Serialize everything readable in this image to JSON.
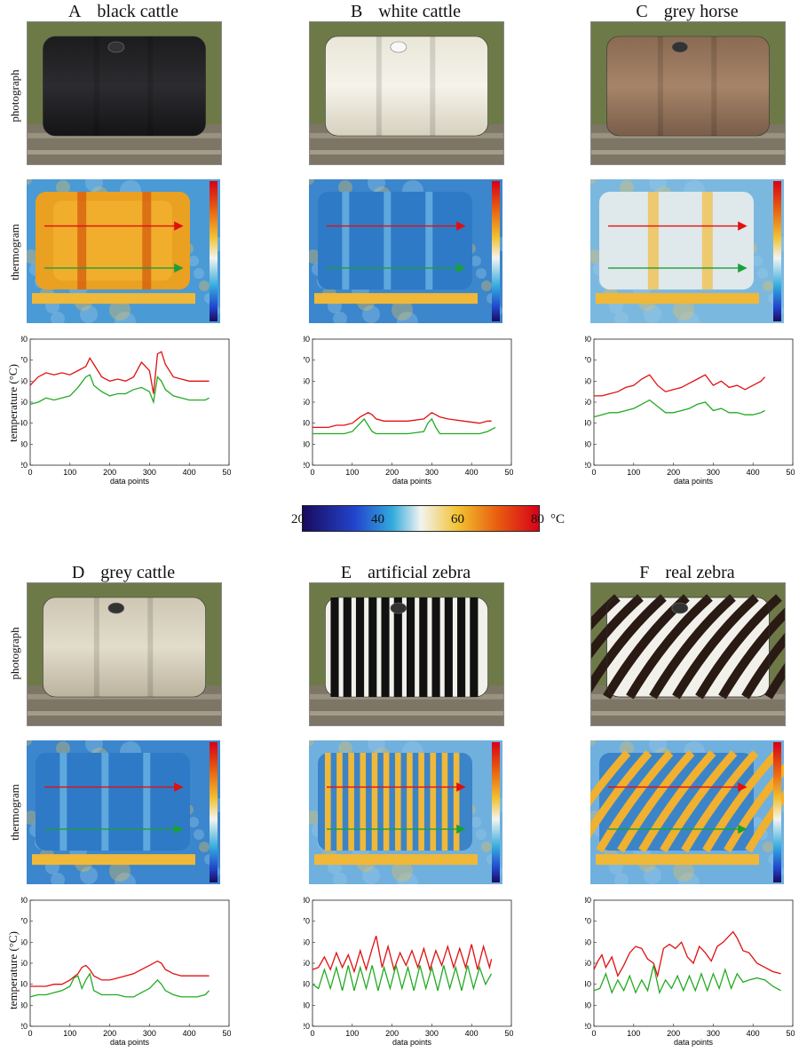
{
  "row_labels": {
    "photograph": "photograph",
    "thermogram": "thermogram",
    "temperature_html": "temperature (°C)"
  },
  "axis": {
    "xlabel": "data points",
    "yticks": [
      "20",
      "30",
      "40",
      "50",
      "60",
      "70",
      "80"
    ],
    "xticks": [
      "0",
      "100",
      "200",
      "300",
      "400",
      "500"
    ]
  },
  "colorbar": {
    "labels": [
      "20",
      "40",
      "60",
      "80"
    ],
    "unit": "°C",
    "colors": [
      "#1a0a5e",
      "#2244cc",
      "#33aadd",
      "#f2f4f0",
      "#f2c030",
      "#e86010",
      "#d80018"
    ]
  },
  "panels": [
    {
      "letter": "A",
      "name": "black cattle",
      "photo_style": "black-cattle",
      "thermo_style": "hot"
    },
    {
      "letter": "B",
      "name": "white cattle",
      "photo_style": "white-cattle",
      "thermo_style": "cold"
    },
    {
      "letter": "C",
      "name": "grey horse",
      "photo_style": "grey-horse",
      "thermo_style": "mixed"
    },
    {
      "letter": "D",
      "name": "grey cattle",
      "photo_style": "grey-cattle",
      "thermo_style": "cold2"
    },
    {
      "letter": "E",
      "name": "artificial zebra",
      "photo_style": "artificial-zebra",
      "thermo_style": "stripes"
    },
    {
      "letter": "F",
      "name": "real zebra",
      "photo_style": "real-zebra",
      "thermo_style": "zebra"
    }
  ],
  "chart_data": [
    {
      "type": "line",
      "panel": "A",
      "xlabel": "data points",
      "xlim": [
        0,
        500
      ],
      "ylim": [
        20,
        80
      ],
      "series": [
        {
          "color": "#e01010",
          "x": [
            0,
            20,
            40,
            60,
            80,
            100,
            120,
            140,
            150,
            160,
            180,
            200,
            220,
            240,
            260,
            280,
            300,
            310,
            320,
            330,
            340,
            360,
            380,
            400,
            420,
            440,
            450
          ],
          "y": [
            58,
            62,
            64,
            63,
            64,
            63,
            65,
            67,
            71,
            68,
            62,
            60,
            61,
            60,
            62,
            69,
            65,
            54,
            73,
            74,
            68,
            62,
            61,
            60,
            60,
            60,
            60
          ]
        },
        {
          "color": "#22aa22",
          "x": [
            0,
            20,
            40,
            60,
            80,
            100,
            120,
            140,
            150,
            160,
            180,
            200,
            220,
            240,
            260,
            280,
            300,
            310,
            320,
            330,
            340,
            360,
            380,
            400,
            420,
            440,
            450
          ],
          "y": [
            49,
            50,
            52,
            51,
            52,
            53,
            57,
            62,
            63,
            58,
            55,
            53,
            54,
            54,
            56,
            57,
            55,
            50,
            62,
            60,
            56,
            53,
            52,
            51,
            51,
            51,
            52
          ]
        }
      ]
    },
    {
      "type": "line",
      "panel": "B",
      "xlabel": "data points",
      "xlim": [
        0,
        500
      ],
      "ylim": [
        20,
        80
      ],
      "series": [
        {
          "color": "#e01010",
          "x": [
            0,
            20,
            40,
            60,
            80,
            100,
            120,
            140,
            150,
            160,
            180,
            200,
            240,
            280,
            300,
            310,
            320,
            340,
            380,
            420,
            440,
            450
          ],
          "y": [
            38,
            38,
            38,
            39,
            39,
            40,
            43,
            45,
            44,
            42,
            41,
            41,
            41,
            42,
            45,
            44,
            43,
            42,
            41,
            40,
            41,
            41
          ]
        },
        {
          "color": "#22aa22",
          "x": [
            0,
            20,
            40,
            60,
            80,
            100,
            120,
            130,
            140,
            150,
            160,
            180,
            200,
            240,
            280,
            290,
            300,
            310,
            320,
            340,
            380,
            420,
            440,
            460
          ],
          "y": [
            35,
            35,
            35,
            35,
            35,
            36,
            40,
            42,
            39,
            36,
            35,
            35,
            35,
            35,
            36,
            40,
            42,
            38,
            35,
            35,
            35,
            35,
            36,
            38
          ]
        }
      ]
    },
    {
      "type": "line",
      "panel": "C",
      "xlabel": "data points",
      "xlim": [
        0,
        500
      ],
      "ylim": [
        20,
        80
      ],
      "series": [
        {
          "color": "#e01010",
          "x": [
            0,
            20,
            40,
            60,
            80,
            100,
            120,
            140,
            160,
            180,
            200,
            220,
            240,
            260,
            280,
            300,
            320,
            340,
            360,
            380,
            400,
            420,
            430
          ],
          "y": [
            53,
            53,
            54,
            55,
            57,
            58,
            61,
            63,
            58,
            55,
            56,
            57,
            59,
            61,
            63,
            58,
            60,
            57,
            58,
            56,
            58,
            60,
            62
          ]
        },
        {
          "color": "#22aa22",
          "x": [
            0,
            20,
            40,
            60,
            80,
            100,
            120,
            140,
            160,
            180,
            200,
            220,
            240,
            260,
            280,
            300,
            320,
            340,
            360,
            380,
            400,
            420,
            430
          ],
          "y": [
            43,
            44,
            45,
            45,
            46,
            47,
            49,
            51,
            48,
            45,
            45,
            46,
            47,
            49,
            50,
            46,
            47,
            45,
            45,
            44,
            44,
            45,
            46
          ]
        }
      ]
    },
    {
      "type": "line",
      "panel": "D",
      "xlabel": "data points",
      "xlim": [
        0,
        500
      ],
      "ylim": [
        20,
        80
      ],
      "series": [
        {
          "color": "#e01010",
          "x": [
            0,
            20,
            40,
            60,
            80,
            100,
            120,
            130,
            140,
            150,
            160,
            180,
            200,
            220,
            240,
            260,
            280,
            300,
            320,
            330,
            340,
            360,
            380,
            400,
            420,
            440,
            450
          ],
          "y": [
            39,
            39,
            39,
            40,
            40,
            42,
            45,
            48,
            49,
            47,
            44,
            42,
            42,
            43,
            44,
            45,
            47,
            49,
            51,
            50,
            47,
            45,
            44,
            44,
            44,
            44,
            44
          ]
        },
        {
          "color": "#22aa22",
          "x": [
            0,
            20,
            40,
            60,
            80,
            100,
            110,
            120,
            130,
            140,
            150,
            160,
            180,
            200,
            220,
            240,
            260,
            280,
            300,
            320,
            330,
            340,
            360,
            380,
            400,
            420,
            440,
            450
          ],
          "y": [
            34,
            35,
            35,
            36,
            37,
            39,
            43,
            44,
            38,
            42,
            45,
            37,
            35,
            35,
            35,
            34,
            34,
            36,
            38,
            42,
            40,
            37,
            35,
            34,
            34,
            34,
            35,
            37
          ]
        }
      ]
    },
    {
      "type": "line",
      "panel": "E",
      "xlabel": "data points",
      "xlim": [
        0,
        500
      ],
      "ylim": [
        20,
        80
      ],
      "series": [
        {
          "color": "#e01010",
          "x": [
            0,
            15,
            30,
            45,
            60,
            75,
            90,
            105,
            120,
            135,
            150,
            160,
            175,
            190,
            205,
            220,
            235,
            250,
            265,
            280,
            295,
            310,
            325,
            340,
            355,
            370,
            385,
            400,
            415,
            430,
            445,
            450
          ],
          "y": [
            47,
            48,
            53,
            47,
            55,
            48,
            54,
            46,
            56,
            47,
            57,
            63,
            48,
            58,
            47,
            55,
            49,
            56,
            48,
            57,
            47,
            56,
            49,
            58,
            48,
            57,
            48,
            59,
            47,
            58,
            48,
            52
          ]
        },
        {
          "color": "#22aa22",
          "x": [
            0,
            15,
            30,
            45,
            60,
            75,
            90,
            105,
            120,
            135,
            150,
            165,
            180,
            195,
            210,
            225,
            240,
            255,
            270,
            285,
            300,
            315,
            330,
            345,
            360,
            375,
            390,
            405,
            420,
            435,
            450
          ],
          "y": [
            40,
            38,
            47,
            38,
            48,
            37,
            49,
            37,
            48,
            38,
            49,
            37,
            48,
            38,
            49,
            38,
            48,
            37,
            49,
            38,
            48,
            37,
            49,
            38,
            48,
            37,
            49,
            38,
            48,
            40,
            45
          ]
        }
      ]
    },
    {
      "type": "line",
      "panel": "F",
      "xlabel": "data points",
      "xlim": [
        0,
        500
      ],
      "ylim": [
        20,
        80
      ],
      "series": [
        {
          "color": "#e01010",
          "x": [
            0,
            10,
            20,
            30,
            45,
            60,
            75,
            90,
            105,
            120,
            135,
            150,
            160,
            175,
            190,
            205,
            220,
            235,
            250,
            265,
            280,
            295,
            310,
            325,
            340,
            350,
            360,
            375,
            390,
            410,
            430,
            450,
            470
          ],
          "y": [
            47,
            51,
            54,
            48,
            53,
            44,
            49,
            55,
            58,
            57,
            52,
            50,
            44,
            57,
            59,
            57,
            60,
            53,
            50,
            58,
            55,
            51,
            58,
            60,
            63,
            65,
            62,
            56,
            55,
            50,
            48,
            46,
            45
          ]
        },
        {
          "color": "#22aa22",
          "x": [
            0,
            15,
            30,
            45,
            60,
            75,
            90,
            105,
            120,
            135,
            150,
            165,
            180,
            195,
            210,
            225,
            240,
            255,
            270,
            285,
            300,
            315,
            330,
            345,
            360,
            375,
            390,
            410,
            430,
            450,
            470
          ],
          "y": [
            37,
            38,
            45,
            36,
            42,
            37,
            44,
            36,
            42,
            37,
            49,
            36,
            42,
            38,
            44,
            37,
            44,
            37,
            45,
            37,
            45,
            38,
            47,
            38,
            45,
            41,
            42,
            43,
            42,
            39,
            37
          ]
        }
      ]
    }
  ]
}
